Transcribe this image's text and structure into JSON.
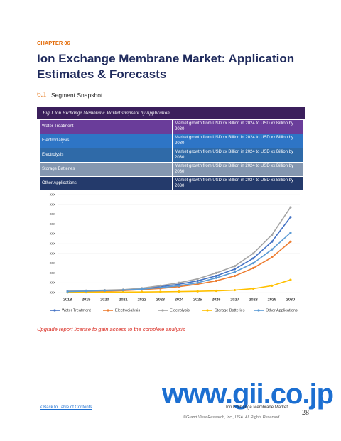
{
  "header": {
    "chapter": "CHAPTER 06",
    "title": "Ion Exchange Membrane Market: Application Estimates & Forecasts"
  },
  "section": {
    "number": "6.1",
    "title": "Segment Snapshot"
  },
  "table": {
    "caption": "Fig.1  Ion Exchange Membrane Market snapshot by Application",
    "row_colors": [
      "#6a3d9a",
      "#2e75c6",
      "#2f6aa8",
      "#8497b0",
      "#243a6b"
    ],
    "rows": [
      [
        "Water Treatment",
        "Market growth from USD xx Billion in 2024 to USD xx Billion by 2030"
      ],
      [
        "Electrodialysis",
        "Market growth from USD xx Billion in 2024 to USD xx Billion by 2030"
      ],
      [
        "Electrolysis",
        "Market growth from USD xx Billion in 2024 to USD xx Billion by 2030"
      ],
      [
        "Storage Batteries",
        "Market growth from USD xx Billion in 2024 to USD xx Billion by 2030"
      ],
      [
        "Other Applications",
        "Market growth from USD xx Billion in 2024 to USD xx Billion by 2030"
      ]
    ]
  },
  "chart_data": {
    "type": "line",
    "categories": [
      "2018",
      "2019",
      "2020",
      "2021",
      "2022",
      "2023",
      "2024",
      "2025",
      "2026",
      "2027",
      "2028",
      "2029",
      "2030"
    ],
    "ylim": [
      0,
      10
    ],
    "yticks": [
      {
        "value": 0,
        "label": "xxx"
      },
      {
        "value": 1,
        "label": "xxx"
      },
      {
        "value": 2,
        "label": "xxx"
      },
      {
        "value": 3,
        "label": "xxx"
      },
      {
        "value": 4,
        "label": "xxx"
      },
      {
        "value": 5,
        "label": "xxx"
      },
      {
        "value": 6,
        "label": "xxx"
      },
      {
        "value": 7,
        "label": "xxx"
      },
      {
        "value": 8,
        "label": "xxx"
      },
      {
        "value": 9,
        "label": "xxx"
      },
      {
        "value": 10,
        "label": "xxx"
      }
    ],
    "grid": true,
    "series": [
      {
        "name": "Water Treatment",
        "color": "#4472c4",
        "values": [
          0.12,
          0.17,
          0.22,
          0.27,
          0.4,
          0.6,
          0.85,
          1.2,
          1.7,
          2.4,
          3.5,
          5.2,
          7.7
        ]
      },
      {
        "name": "Electrodialysis",
        "color": "#ed7d31",
        "values": [
          0.08,
          0.12,
          0.15,
          0.2,
          0.3,
          0.42,
          0.6,
          0.85,
          1.2,
          1.7,
          2.5,
          3.6,
          5.2
        ]
      },
      {
        "name": "Electrolysis",
        "color": "#a5a5a5",
        "values": [
          0.15,
          0.2,
          0.25,
          0.3,
          0.45,
          0.7,
          1.0,
          1.4,
          2.0,
          2.7,
          4.0,
          5.9,
          8.7
        ]
      },
      {
        "name": "Storage Batteries",
        "color": "#ffc000",
        "values": [
          0.02,
          0.03,
          0.04,
          0.05,
          0.06,
          0.08,
          0.1,
          0.13,
          0.18,
          0.25,
          0.4,
          0.7,
          1.3
        ]
      },
      {
        "name": "Other Applications",
        "color": "#5b9bd5",
        "values": [
          0.1,
          0.15,
          0.2,
          0.25,
          0.35,
          0.5,
          0.7,
          1.0,
          1.5,
          2.1,
          3.0,
          4.4,
          6.1
        ]
      }
    ]
  },
  "notice": "Upgrade report license to gain access to the complete analysis",
  "watermark": "www.gii.co.jp",
  "footer": {
    "back_link": "< Back to Table of Contents",
    "market": "Ion Exchange Membrane Market",
    "page": "28",
    "copyright": "©Grand View Research, Inc., USA. All Rights Reserved"
  }
}
